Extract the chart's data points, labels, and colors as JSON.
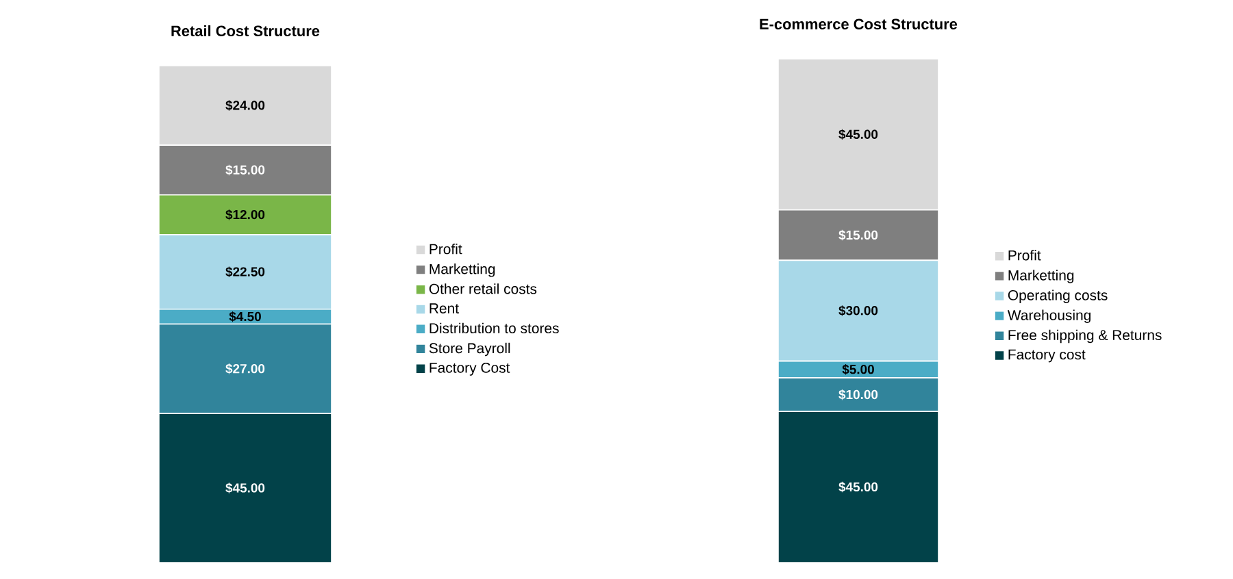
{
  "chart_data": [
    {
      "type": "bar",
      "title": "Retail Cost Structure",
      "stacked": true,
      "categories": [
        null
      ],
      "legend": "right",
      "tick_labels": false,
      "series": [
        {
          "name": "Factory Cost",
          "color": "#024249",
          "values": [
            45
          ],
          "value_labels": [
            "$45.00"
          ]
        },
        {
          "name": "Store Payroll",
          "color": "#31849b",
          "values": [
            27
          ],
          "value_labels": [
            "$27.00"
          ]
        },
        {
          "name": "Distribution to stores",
          "color": "#4bacc6",
          "values": [
            4.5
          ],
          "value_labels": [
            "$4.50"
          ]
        },
        {
          "name": "Rent",
          "color": "#a8d8e8",
          "values": [
            22.5
          ],
          "value_labels": [
            "$22.50"
          ]
        },
        {
          "name": "Other retail costs",
          "color": "#7ab648",
          "values": [
            12
          ],
          "value_labels": [
            "$12.00"
          ]
        },
        {
          "name": "Marketting",
          "color": "#7f7f7f",
          "values": [
            15
          ],
          "value_labels": [
            "$15.00"
          ]
        },
        {
          "name": "Profit",
          "color": "#d9d9d9",
          "values": [
            24
          ],
          "value_labels": [
            "$24.00"
          ]
        }
      ]
    },
    {
      "type": "bar",
      "title": "E-commerce Cost Structure",
      "stacked": true,
      "categories": [
        null
      ],
      "legend": "right",
      "tick_labels": false,
      "series": [
        {
          "name": "Factory cost",
          "color": "#024249",
          "values": [
            45
          ],
          "value_labels": [
            "$45.00"
          ]
        },
        {
          "name": "Free shipping & Returns",
          "color": "#31849b",
          "values": [
            10
          ],
          "value_labels": [
            "$10.00"
          ]
        },
        {
          "name": "Warehousing",
          "color": "#4bacc6",
          "values": [
            5
          ],
          "value_labels": [
            "$5.00"
          ]
        },
        {
          "name": "Operating costs",
          "color": "#a8d8e8",
          "values": [
            30
          ],
          "value_labels": [
            "$30.00"
          ]
        },
        {
          "name": "Marketting",
          "color": "#7f7f7f",
          "values": [
            15
          ],
          "value_labels": [
            "$15.00"
          ]
        },
        {
          "name": "Profit",
          "color": "#d9d9d9",
          "values": [
            45
          ],
          "value_labels": [
            "$45.00"
          ]
        }
      ]
    }
  ]
}
